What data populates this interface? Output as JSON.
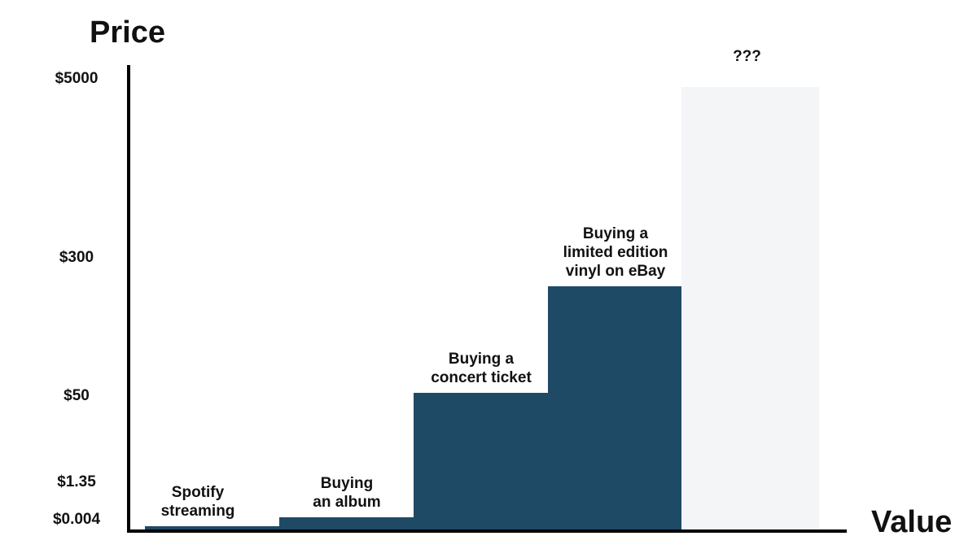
{
  "chart_data": {
    "type": "bar",
    "ylabel": "Price",
    "xlabel": "Value",
    "y_scale": "ordinal-price",
    "y_ticks": [
      {
        "label": "$5000",
        "value": 5000
      },
      {
        "label": "$300",
        "value": 300
      },
      {
        "label": "$50",
        "value": 50
      },
      {
        "label": "$1.35",
        "value": 1.35
      },
      {
        "label": "$0.004",
        "value": 0.004
      }
    ],
    "bars": [
      {
        "label_lines": [
          "Spotify",
          "streaming"
        ],
        "value": 0.004,
        "color": "#1e4a66"
      },
      {
        "label_lines": [
          "Buying",
          "an album"
        ],
        "value": 1.35,
        "color": "#1e4a66"
      },
      {
        "label_lines": [
          "Buying a",
          "concert ticket"
        ],
        "value": 50,
        "color": "#1e4a66"
      },
      {
        "label_lines": [
          "Buying a",
          "limited edition",
          "vinyl on eBay"
        ],
        "value": 300,
        "color": "#1e4a66"
      },
      {
        "label_lines": [
          "???"
        ],
        "value": 5000,
        "color": "#f4f5f7"
      }
    ],
    "grid": false,
    "legend": "none"
  }
}
